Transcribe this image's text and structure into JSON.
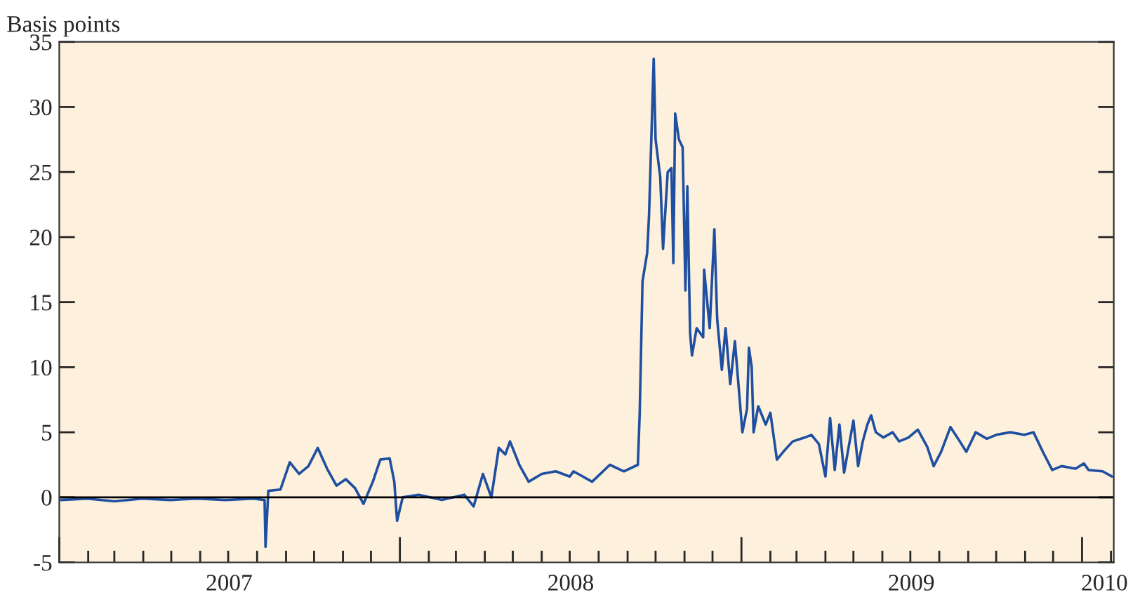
{
  "chart_data": {
    "type": "line",
    "ylabel": "Basis points",
    "x": [
      "2007-01-03",
      "2007-01-31",
      "2007-03-01",
      "2007-03-31",
      "2007-04-30",
      "2007-05-29",
      "2007-06-28",
      "2007-07-28",
      "2007-08-09",
      "2007-08-10",
      "2007-08-13",
      "2007-08-26",
      "2007-09-05",
      "2007-09-15",
      "2007-09-25",
      "2007-10-05",
      "2007-10-15",
      "2007-10-25",
      "2007-11-04",
      "2007-11-14",
      "2007-11-23",
      "2007-12-03",
      "2007-12-11",
      "2007-12-21",
      "2007-12-26",
      "2007-12-29",
      "2008-01-04",
      "2008-01-21",
      "2008-02-15",
      "2008-03-10",
      "2008-03-20",
      "2008-03-30",
      "2008-04-08",
      "2008-04-16",
      "2008-04-23",
      "2008-04-28",
      "2008-05-08",
      "2008-05-18",
      "2008-06-01",
      "2008-06-16",
      "2008-07-01",
      "2008-07-05",
      "2008-07-25",
      "2008-08-13",
      "2008-08-28",
      "2008-09-12",
      "2008-09-14",
      "2008-09-17",
      "2008-09-22",
      "2008-09-24",
      "2008-09-29",
      "2008-10-01",
      "2008-10-06",
      "2008-10-09",
      "2008-10-14",
      "2008-10-18",
      "2008-10-20",
      "2008-10-22",
      "2008-10-26",
      "2008-10-30",
      "2008-11-02",
      "2008-11-04",
      "2008-11-07",
      "2008-11-09",
      "2008-11-14",
      "2008-11-21",
      "2008-11-22",
      "2008-11-28",
      "2008-12-03",
      "2008-12-06",
      "2008-12-11",
      "2008-12-15",
      "2008-12-20",
      "2008-12-25",
      "2009-01-02",
      "2009-01-07",
      "2009-01-09",
      "2009-01-12",
      "2009-01-14",
      "2009-01-19",
      "2009-01-27",
      "2009-02-01",
      "2009-02-08",
      "2009-02-16",
      "2009-02-25",
      "2009-03-10",
      "2009-03-17",
      "2009-03-25",
      "2009-04-01",
      "2009-04-06",
      "2009-04-11",
      "2009-04-16",
      "2009-04-21",
      "2009-04-26",
      "2009-05-01",
      "2009-05-06",
      "2009-05-11",
      "2009-05-16",
      "2009-05-20",
      "2009-05-25",
      "2009-06-02",
      "2009-06-12",
      "2009-06-19",
      "2009-06-29",
      "2009-07-09",
      "2009-07-19",
      "2009-07-26",
      "2009-08-03",
      "2009-08-13",
      "2009-08-23",
      "2009-08-30",
      "2009-09-09",
      "2009-09-21",
      "2009-10-01",
      "2009-10-16",
      "2009-10-31",
      "2009-11-10",
      "2009-11-20",
      "2009-11-30",
      "2009-12-10",
      "2009-12-25",
      "2010-01-03",
      "2010-01-08",
      "2010-01-23",
      "2010-02-02"
    ],
    "series": [
      {
        "color": "#1f4fa0",
        "values": [
          -0.2,
          -0.1,
          -0.3,
          -0.1,
          -0.2,
          -0.1,
          -0.2,
          -0.1,
          -0.2,
          -3.8,
          0.5,
          0.6,
          2.7,
          1.8,
          2.4,
          3.8,
          2.2,
          0.9,
          1.4,
          0.7,
          -0.5,
          1.2,
          2.9,
          3.0,
          1.2,
          -1.8,
          0,
          0.2,
          -0.2,
          0.2,
          -0.7,
          1.8,
          0,
          3.8,
          3.3,
          4.3,
          2.5,
          1.2,
          1.8,
          2.0,
          1.6,
          2.0,
          1.2,
          2.5,
          2.0,
          2.5,
          6.5,
          16.6,
          18.8,
          21.7,
          33.7,
          27.5,
          24.6,
          19.1,
          25.0,
          25.3,
          18.0,
          29.5,
          27.5,
          26.9,
          15.9,
          23.9,
          12.6,
          10.9,
          13.0,
          12.3,
          17.5,
          13.0,
          20.6,
          13.7,
          9.8,
          13.0,
          8.7,
          12.0,
          5.0,
          6.8,
          11.5,
          10.0,
          5.0,
          7.0,
          5.6,
          6.5,
          2.9,
          3.6,
          4.3,
          4.6,
          4.8,
          4.1,
          1.6,
          6.1,
          2.1,
          5.6,
          1.9,
          3.9,
          5.9,
          2.4,
          4.3,
          5.6,
          6.3,
          5.0,
          4.6,
          5.0,
          4.3,
          4.6,
          5.2,
          3.9,
          2.4,
          3.5,
          5.4,
          4.3,
          3.5,
          5.0,
          4.5,
          4.8,
          5.0,
          4.8,
          5.0,
          3.5,
          2.1,
          2.4,
          2.2,
          2.6,
          2.1,
          2.0,
          1.6
        ]
      }
    ],
    "xlim": [
      "2007-01-01",
      "2010-02-04"
    ],
    "xticks": [
      {
        "value": "2007-07-02",
        "label": "2007"
      },
      {
        "value": "2008-07-02",
        "label": "2008"
      },
      {
        "value": "2009-07-02",
        "label": "2009"
      },
      {
        "value": "2010-01-25",
        "label": "2010"
      }
    ],
    "ylim": [
      -5,
      35
    ],
    "yticks": [
      -5,
      0,
      5,
      10,
      15,
      20,
      25,
      30,
      35
    ],
    "ref_lines": [
      {
        "axis": "y",
        "value": 0,
        "color": "#000000"
      }
    ],
    "grid": false,
    "legend": false
  }
}
